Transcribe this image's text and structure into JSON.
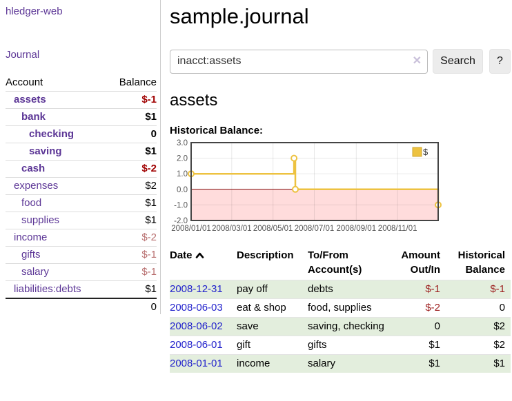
{
  "colors": {
    "link_purple": "#5c3696",
    "link_blue": "#2222cc",
    "negative": "#a00000",
    "negative_soft": "#b86f6f",
    "stripe_green": "#e3eedd",
    "series_gold": "#edc240",
    "negative_region_pink": "#ffdcdc",
    "zero_line": "#7f0000"
  },
  "sidebar": {
    "brand": "hledger-web",
    "journal_link": "Journal",
    "accounts": {
      "col_account": "Account",
      "col_balance": "Balance",
      "rows": [
        {
          "name": "assets",
          "depth": 1,
          "balance": "$-1",
          "bold": true,
          "neg": "dark"
        },
        {
          "name": "bank",
          "depth": 2,
          "balance": "$1",
          "bold": true,
          "neg": null
        },
        {
          "name": "checking",
          "depth": 3,
          "balance": "0",
          "bold": true,
          "neg": null
        },
        {
          "name": "saving",
          "depth": 3,
          "balance": "$1",
          "bold": true,
          "neg": null
        },
        {
          "name": "cash",
          "depth": 2,
          "balance": "$-2",
          "bold": true,
          "neg": "dark"
        },
        {
          "name": "expenses",
          "depth": 1,
          "balance": "$2",
          "bold": false,
          "neg": null
        },
        {
          "name": "food",
          "depth": 2,
          "balance": "$1",
          "bold": false,
          "neg": null
        },
        {
          "name": "supplies",
          "depth": 2,
          "balance": "$1",
          "bold": false,
          "neg": null
        },
        {
          "name": "income",
          "depth": 1,
          "balance": "$-2",
          "bold": false,
          "neg": "soft"
        },
        {
          "name": "gifts",
          "depth": 2,
          "balance": "$-1",
          "bold": false,
          "neg": "soft"
        },
        {
          "name": "salary",
          "depth": 2,
          "balance": "$-1",
          "bold": false,
          "neg": "soft",
          "blue": true
        },
        {
          "name": "liabilities:debts",
          "depth": 1,
          "balance": "$1",
          "bold": false,
          "neg": null
        }
      ],
      "total": "0"
    }
  },
  "main": {
    "title": "sample.journal",
    "search": {
      "value": "inacct:assets",
      "clear": "✕",
      "search_label": "Search",
      "help_label": "?"
    },
    "heading": "assets",
    "chart_title": "Historical Balance:"
  },
  "chart_data": {
    "type": "line",
    "style": "step-after",
    "title": "Historical Balance:",
    "legend": {
      "label": "$",
      "position": "top-right"
    },
    "ylim": [
      -2,
      3
    ],
    "yticks": [
      {
        "label": "3.0",
        "value": 3
      },
      {
        "label": "2.0",
        "value": 2
      },
      {
        "label": "1.0",
        "value": 1
      },
      {
        "label": "0.0",
        "value": 0
      },
      {
        "label": "-1.0",
        "value": -1
      },
      {
        "label": "-2.0",
        "value": -2
      }
    ],
    "x_range": [
      "2008-01-01",
      "2008-12-31"
    ],
    "xticks": [
      {
        "label": "2008/01/01",
        "date": "2008-01-01"
      },
      {
        "label": "2008/03/01",
        "date": "2008-03-01"
      },
      {
        "label": "2008/05/01",
        "date": "2008-05-01"
      },
      {
        "label": "2008/07/01",
        "date": "2008-07-01"
      },
      {
        "label": "2008/09/01",
        "date": "2008-09-01"
      },
      {
        "label": "2008/11/01",
        "date": "2008-11-01"
      }
    ],
    "series": [
      {
        "name": "$",
        "color": "#edc240",
        "points": [
          {
            "x": "2008-01-01",
            "y": 1
          },
          {
            "x": "2008-06-01",
            "y": 2
          },
          {
            "x": "2008-06-03",
            "y": 0
          },
          {
            "x": "2008-12-31",
            "y": -1
          }
        ]
      }
    ],
    "grid": true,
    "negative_region_shaded": true
  },
  "register": {
    "headers": [
      {
        "line1": "Date",
        "line2": "",
        "align": "l",
        "sort": "asc"
      },
      {
        "line1": "Description",
        "line2": "",
        "align": "l"
      },
      {
        "line1": "To/From",
        "line2": "Account(s)",
        "align": "l"
      },
      {
        "line1": "Amount",
        "line2": "Out/In",
        "align": "r"
      },
      {
        "line1": "Historical",
        "line2": "Balance",
        "align": "r"
      }
    ],
    "rows": [
      {
        "date": "2008-12-31",
        "description": "pay off",
        "accounts": "debts",
        "amount": "$-1",
        "amount_neg": true,
        "balance": "$-1",
        "balance_neg": true,
        "green": true
      },
      {
        "date": "2008-06-03",
        "description": "eat & shop",
        "accounts": "food, supplies",
        "amount": "$-2",
        "amount_neg": true,
        "balance": "0",
        "balance_neg": false,
        "green": false
      },
      {
        "date": "2008-06-02",
        "description": "save",
        "accounts": "saving, checking",
        "amount": "0",
        "amount_neg": false,
        "balance": "$2",
        "balance_neg": false,
        "green": true
      },
      {
        "date": "2008-06-01",
        "description": "gift",
        "accounts": "gifts",
        "amount": "$1",
        "amount_neg": false,
        "balance": "$2",
        "balance_neg": false,
        "green": false
      },
      {
        "date": "2008-01-01",
        "description": "income",
        "accounts": "salary",
        "amount": "$1",
        "amount_neg": false,
        "balance": "$1",
        "balance_neg": false,
        "green": true
      }
    ]
  }
}
